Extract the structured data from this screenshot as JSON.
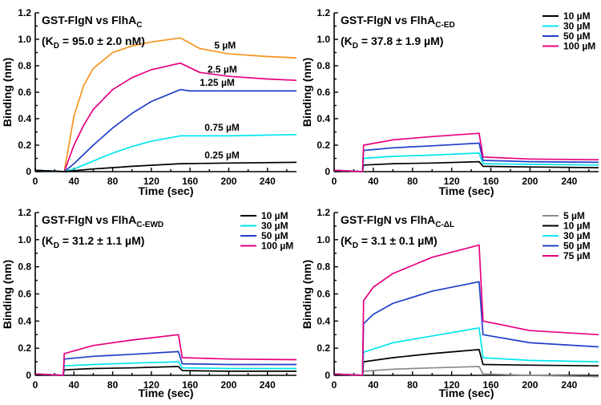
{
  "chart_data": [
    {
      "type": "line",
      "title": "GST-FlgN vs FlhA",
      "title_sub": "C",
      "kd_label": "(K",
      "kd_sub": "D",
      "kd_value": " = 95.0 ± 2.0 nM)",
      "xlabel": "Time (sec)",
      "ylabel": "Binding (nm)",
      "xlim": [
        0,
        270
      ],
      "ylim": [
        0,
        1.2
      ],
      "xticks": [
        "0",
        "40",
        "80",
        "120",
        "160",
        "200",
        "240"
      ],
      "yticks": [
        "0",
        "0.2",
        "0.4",
        "0.6",
        "0.8",
        "1.0",
        "1.2"
      ],
      "legend": null,
      "assoc_start": 30,
      "assoc_end": 150,
      "series": [
        {
          "name": "5 µM",
          "color": "#f7941d",
          "points": [
            [
              0,
              0.01
            ],
            [
              30,
              0.0
            ],
            [
              40,
              0.42
            ],
            [
              50,
              0.65
            ],
            [
              60,
              0.78
            ],
            [
              80,
              0.9
            ],
            [
              100,
              0.95
            ],
            [
              120,
              0.98
            ],
            [
              150,
              1.01
            ],
            [
              170,
              0.93
            ],
            [
              200,
              0.89
            ],
            [
              240,
              0.87
            ],
            [
              270,
              0.86
            ]
          ]
        },
        {
          "name": "2.5 µM",
          "color": "#e6007e",
          "points": [
            [
              0,
              0.01
            ],
            [
              30,
              0.0
            ],
            [
              40,
              0.2
            ],
            [
              50,
              0.35
            ],
            [
              60,
              0.47
            ],
            [
              80,
              0.62
            ],
            [
              100,
              0.71
            ],
            [
              120,
              0.77
            ],
            [
              150,
              0.82
            ],
            [
              170,
              0.75
            ],
            [
              200,
              0.72
            ],
            [
              240,
              0.7
            ],
            [
              270,
              0.69
            ]
          ]
        },
        {
          "name": "1.25 µM",
          "color": "#1f3fc8",
          "points": [
            [
              0,
              0.01
            ],
            [
              30,
              0.0
            ],
            [
              40,
              0.06
            ],
            [
              60,
              0.2
            ],
            [
              80,
              0.33
            ],
            [
              100,
              0.44
            ],
            [
              120,
              0.53
            ],
            [
              150,
              0.62
            ],
            [
              160,
              0.61
            ],
            [
              200,
              0.61
            ],
            [
              270,
              0.61
            ]
          ]
        },
        {
          "name": "0.75 µM",
          "color": "#00e5ee",
          "points": [
            [
              0,
              0.01
            ],
            [
              30,
              0.0
            ],
            [
              40,
              0.02
            ],
            [
              60,
              0.08
            ],
            [
              80,
              0.14
            ],
            [
              100,
              0.19
            ],
            [
              120,
              0.23
            ],
            [
              150,
              0.27
            ],
            [
              160,
              0.27
            ],
            [
              200,
              0.27
            ],
            [
              270,
              0.28
            ]
          ]
        },
        {
          "name": "0.25 µM",
          "color": "#000000",
          "points": [
            [
              0,
              0.01
            ],
            [
              30,
              0.0
            ],
            [
              60,
              0.02
            ],
            [
              100,
              0.04
            ],
            [
              150,
              0.06
            ],
            [
              200,
              0.065
            ],
            [
              270,
              0.07
            ]
          ]
        }
      ],
      "annotations": [
        {
          "text": "5 µM",
          "x": 185,
          "y": 0.93
        },
        {
          "text": "2.5 µM",
          "x": 178,
          "y": 0.75
        },
        {
          "text": "1.25 µM",
          "x": 170,
          "y": 0.65
        },
        {
          "text": "0.75 µM",
          "x": 175,
          "y": 0.31
        },
        {
          "text": "0.25 µM",
          "x": 175,
          "y": 0.1
        }
      ]
    },
    {
      "type": "line",
      "title": "GST-FlgN vs FlhA",
      "title_sub": "C-ED",
      "kd_label": "(K",
      "kd_sub": "D",
      "kd_value": " = 37.8 ± 1.9 µM)",
      "xlabel": "Time (sec)",
      "ylabel": "Binding (nm)",
      "xlim": [
        0,
        270
      ],
      "ylim": [
        0,
        1.2
      ],
      "xticks": [
        "0",
        "40",
        "80",
        "120",
        "160",
        "200",
        "240"
      ],
      "yticks": [
        "0",
        "0.2",
        "0.4",
        "0.6",
        "0.8",
        "1.0",
        "1.2"
      ],
      "legend": "top-right",
      "assoc_start": 30,
      "assoc_end": 150,
      "series": [
        {
          "name": "10 µM",
          "color": "#000000",
          "points": [
            [
              0,
              0.01
            ],
            [
              29,
              0.0
            ],
            [
              30,
              0.05
            ],
            [
              60,
              0.06
            ],
            [
              100,
              0.065
            ],
            [
              148,
              0.075
            ],
            [
              152,
              0.04
            ],
            [
              200,
              0.035
            ],
            [
              270,
              0.03
            ]
          ]
        },
        {
          "name": "30 µM",
          "color": "#00e5ee",
          "points": [
            [
              0,
              0.01
            ],
            [
              29,
              0.0
            ],
            [
              30,
              0.1
            ],
            [
              60,
              0.115
            ],
            [
              100,
              0.125
            ],
            [
              148,
              0.14
            ],
            [
              152,
              0.06
            ],
            [
              200,
              0.055
            ],
            [
              270,
              0.05
            ]
          ]
        },
        {
          "name": "50 µM",
          "color": "#1f3fc8",
          "points": [
            [
              0,
              0.01
            ],
            [
              29,
              0.0
            ],
            [
              30,
              0.16
            ],
            [
              60,
              0.18
            ],
            [
              100,
              0.195
            ],
            [
              148,
              0.215
            ],
            [
              152,
              0.085
            ],
            [
              200,
              0.075
            ],
            [
              270,
              0.07
            ]
          ]
        },
        {
          "name": "100 µM",
          "color": "#e6007e",
          "points": [
            [
              0,
              0.01
            ],
            [
              29,
              0.0
            ],
            [
              30,
              0.2
            ],
            [
              60,
              0.24
            ],
            [
              100,
              0.265
            ],
            [
              148,
              0.29
            ],
            [
              152,
              0.11
            ],
            [
              200,
              0.095
            ],
            [
              270,
              0.09
            ]
          ]
        }
      ],
      "annotations": []
    },
    {
      "type": "line",
      "title": "GST-FlgN vs FlhA",
      "title_sub": "C-EWD",
      "kd_label": "(K",
      "kd_sub": "D",
      "kd_value": " = 31.2 ± 1.1 µM)",
      "xlabel": "Time (sec)",
      "ylabel": "Binding (nm)",
      "xlim": [
        0,
        270
      ],
      "ylim": [
        0,
        1.2
      ],
      "xticks": [
        "0",
        "40",
        "80",
        "120",
        "160",
        "200",
        "240"
      ],
      "yticks": [
        "0",
        "0.2",
        "0.4",
        "0.6",
        "0.8",
        "1.0",
        "1.2"
      ],
      "legend": "top-right",
      "assoc_start": 30,
      "assoc_end": 150,
      "series": [
        {
          "name": "10 µM",
          "color": "#000000",
          "points": [
            [
              0,
              0.01
            ],
            [
              29,
              0.0
            ],
            [
              30,
              0.04
            ],
            [
              60,
              0.05
            ],
            [
              100,
              0.055
            ],
            [
              148,
              0.065
            ],
            [
              152,
              0.035
            ],
            [
              200,
              0.03
            ],
            [
              270,
              0.03
            ]
          ]
        },
        {
          "name": "30 µM",
          "color": "#00e5ee",
          "points": [
            [
              0,
              0.01
            ],
            [
              29,
              0.0
            ],
            [
              30,
              0.07
            ],
            [
              60,
              0.08
            ],
            [
              100,
              0.09
            ],
            [
              148,
              0.1
            ],
            [
              152,
              0.055
            ],
            [
              200,
              0.05
            ],
            [
              270,
              0.05
            ]
          ]
        },
        {
          "name": "50 µM",
          "color": "#1f3fc8",
          "points": [
            [
              0,
              0.01
            ],
            [
              29,
              0.0
            ],
            [
              30,
              0.12
            ],
            [
              60,
              0.14
            ],
            [
              100,
              0.155
            ],
            [
              148,
              0.175
            ],
            [
              152,
              0.085
            ],
            [
              200,
              0.08
            ],
            [
              270,
              0.08
            ]
          ]
        },
        {
          "name": "100 µM",
          "color": "#e6007e",
          "points": [
            [
              0,
              0.01
            ],
            [
              29,
              0.0
            ],
            [
              30,
              0.16
            ],
            [
              60,
              0.22
            ],
            [
              100,
              0.26
            ],
            [
              148,
              0.3
            ],
            [
              152,
              0.13
            ],
            [
              200,
              0.12
            ],
            [
              270,
              0.115
            ]
          ]
        }
      ],
      "annotations": []
    },
    {
      "type": "line",
      "title": "GST-FlgN vs FlhA",
      "title_sub": "C-ΔL",
      "kd_label": "(K",
      "kd_sub": "D",
      "kd_value": " = 3.1 ± 0.1 µM)",
      "xlabel": "Time (sec)",
      "ylabel": "Binding (nm)",
      "xlim": [
        0,
        270
      ],
      "ylim": [
        0,
        1.2
      ],
      "xticks": [
        "0",
        "40",
        "80",
        "120",
        "160",
        "200",
        "240"
      ],
      "yticks": [
        "0",
        "0.2",
        "0.4",
        "0.6",
        "0.8",
        "1.0",
        "1.2"
      ],
      "legend": "top-right",
      "assoc_start": 30,
      "assoc_end": 150,
      "series": [
        {
          "name": "5 µM",
          "color": "#8c8c8c",
          "points": [
            [
              0,
              0.01
            ],
            [
              29,
              0.0
            ],
            [
              30,
              0.03
            ],
            [
              60,
              0.045
            ],
            [
              100,
              0.055
            ],
            [
              148,
              0.065
            ],
            [
              152,
              0.01
            ],
            [
              200,
              0.0
            ],
            [
              270,
              -0.01
            ]
          ]
        },
        {
          "name": "10 µM",
          "color": "#000000",
          "points": [
            [
              0,
              0.01
            ],
            [
              29,
              0.0
            ],
            [
              30,
              0.1
            ],
            [
              60,
              0.13
            ],
            [
              100,
              0.16
            ],
            [
              148,
              0.19
            ],
            [
              152,
              0.08
            ],
            [
              200,
              0.075
            ],
            [
              270,
              0.07
            ]
          ]
        },
        {
          "name": "30 µM",
          "color": "#00e5ee",
          "points": [
            [
              0,
              0.01
            ],
            [
              29,
              0.0
            ],
            [
              30,
              0.17
            ],
            [
              60,
              0.24
            ],
            [
              100,
              0.29
            ],
            [
              148,
              0.35
            ],
            [
              152,
              0.13
            ],
            [
              200,
              0.11
            ],
            [
              270,
              0.1
            ]
          ]
        },
        {
          "name": "50 µM",
          "color": "#1f3fc8",
          "points": [
            [
              0,
              0.01
            ],
            [
              29,
              0.0
            ],
            [
              30,
              0.38
            ],
            [
              40,
              0.45
            ],
            [
              60,
              0.53
            ],
            [
              100,
              0.62
            ],
            [
              148,
              0.69
            ],
            [
              152,
              0.3
            ],
            [
              200,
              0.24
            ],
            [
              270,
              0.21
            ]
          ]
        },
        {
          "name": "75 µM",
          "color": "#e6007e",
          "points": [
            [
              0,
              0.01
            ],
            [
              29,
              0.0
            ],
            [
              30,
              0.55
            ],
            [
              40,
              0.65
            ],
            [
              60,
              0.75
            ],
            [
              100,
              0.87
            ],
            [
              148,
              0.96
            ],
            [
              152,
              0.4
            ],
            [
              200,
              0.33
            ],
            [
              270,
              0.3
            ]
          ]
        }
      ],
      "annotations": []
    }
  ]
}
